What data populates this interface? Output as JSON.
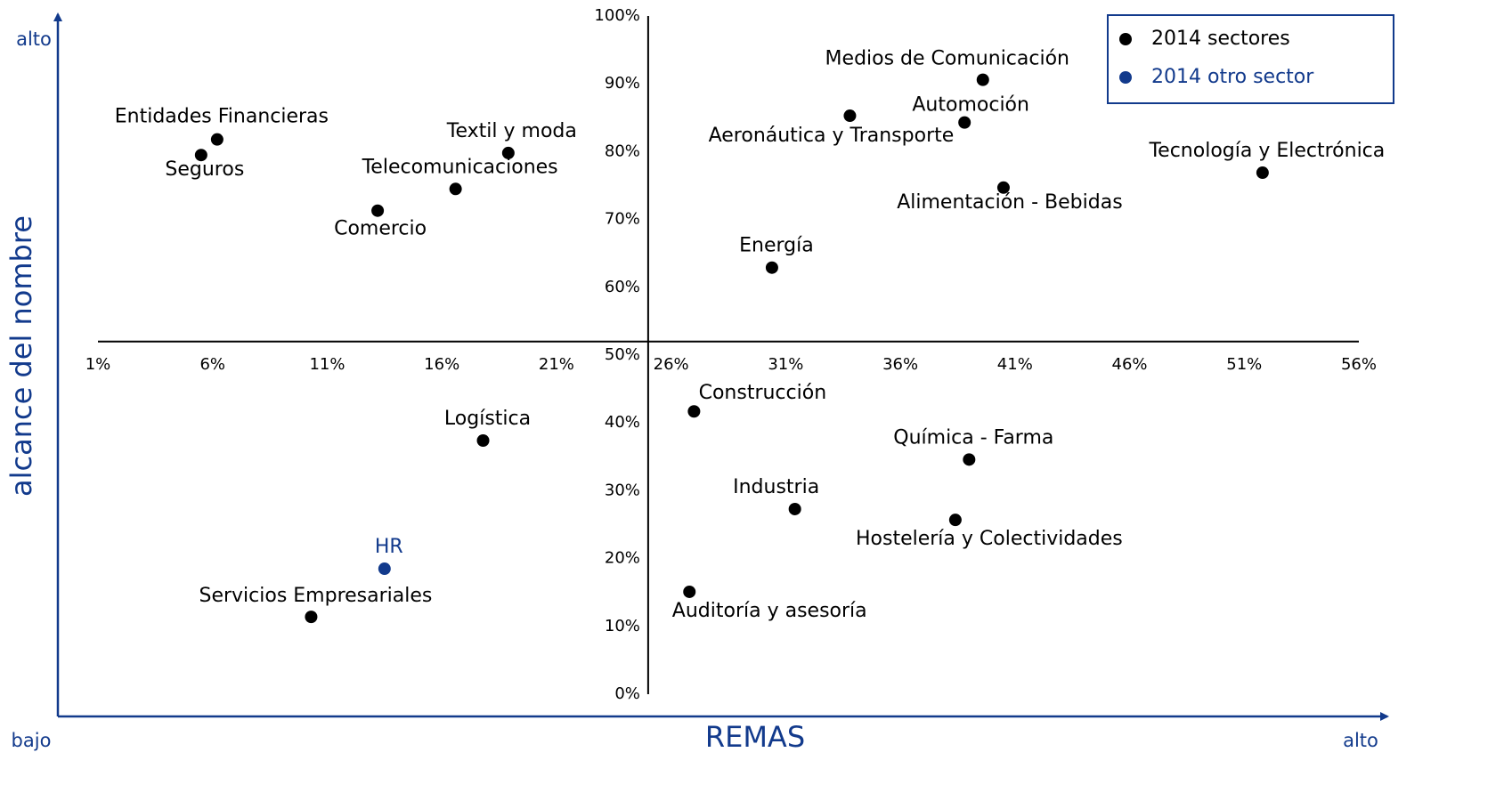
{
  "chart_data": {
    "type": "scatter",
    "x_label": "REMAS",
    "y_label": "alcance del nombre",
    "annotations": {
      "top_left": "alto",
      "bottom_left": "bajo",
      "bottom_right": "alto"
    },
    "xlim": [
      1,
      56
    ],
    "ylim": [
      0,
      100
    ],
    "x_axis_crosses_y_at": 52,
    "y_axis_crosses_x_at": 25,
    "xticks": [
      {
        "value": 1,
        "label": "1%"
      },
      {
        "value": 6,
        "label": "6%"
      },
      {
        "value": 11,
        "label": "11%"
      },
      {
        "value": 16,
        "label": "16%"
      },
      {
        "value": 21,
        "label": "21%"
      },
      {
        "value": 26,
        "label": "26%"
      },
      {
        "value": 31,
        "label": "31%"
      },
      {
        "value": 36,
        "label": "36%"
      },
      {
        "value": 41,
        "label": "41%"
      },
      {
        "value": 46,
        "label": "46%"
      },
      {
        "value": 51,
        "label": "51%"
      },
      {
        "value": 56,
        "label": "56%"
      }
    ],
    "yticks": [
      {
        "value": 0,
        "label": "0%"
      },
      {
        "value": 10,
        "label": "10%"
      },
      {
        "value": 20,
        "label": "20%"
      },
      {
        "value": 30,
        "label": "30%"
      },
      {
        "value": 40,
        "label": "40%"
      },
      {
        "value": 50,
        "label": "50%"
      },
      {
        "value": 60,
        "label": "60%"
      },
      {
        "value": 70,
        "label": "70%"
      },
      {
        "value": 80,
        "label": "80%"
      },
      {
        "value": 90,
        "label": "90%"
      },
      {
        "value": 100,
        "label": "100%"
      }
    ],
    "legend": "upper right",
    "series": [
      {
        "name": "2014 sectores",
        "color": "#000000",
        "labels": [
          "Medios de Comunicación",
          "Automoción",
          "Aeronáutica y Transporte",
          "Tecnología y Electrónica",
          "Alimentación - Bebidas",
          "Energía",
          "Entidades Financieras",
          "Seguros",
          "Textil y moda",
          "Telecomunicaciones",
          "Comercio",
          "Construcción",
          "Logística",
          "Química - Farma",
          "Industria",
          "Hostelería y Colectividades",
          "Servicios Empresariales",
          "Auditoría y asesoría"
        ],
        "x": [
          39.6,
          38.8,
          33.8,
          51.8,
          40.5,
          30.4,
          6.2,
          5.5,
          18.9,
          16.6,
          13.2,
          27.0,
          17.8,
          39.0,
          31.4,
          38.4,
          10.3,
          26.8
        ],
        "values": [
          90.6,
          84.3,
          85.3,
          76.9,
          74.7,
          62.9,
          81.8,
          79.5,
          79.8,
          74.5,
          71.3,
          41.7,
          37.4,
          34.6,
          27.3,
          25.7,
          11.4,
          15.1
        ]
      },
      {
        "name": "2014 otro sector",
        "color": "#123a8c",
        "labels": [
          "HR"
        ],
        "x": [
          13.5
        ],
        "values": [
          18.5
        ]
      }
    ]
  }
}
